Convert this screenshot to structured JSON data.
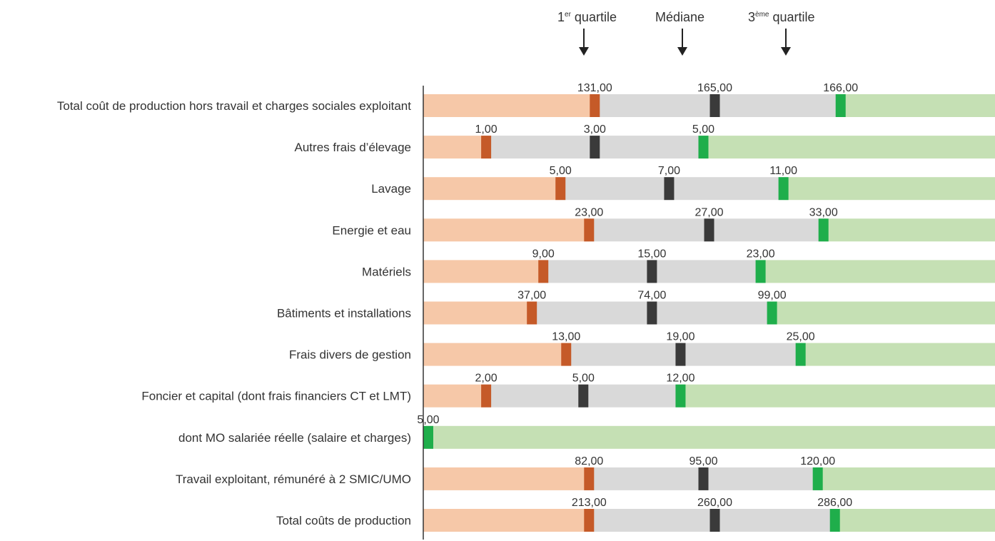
{
  "header": {
    "q1_num": "1",
    "q1_sup": "er",
    "q1_text": " quartile",
    "median": "Médiane",
    "q3_num": "3",
    "q3_sup": "ème",
    "q3_text": " quartile"
  },
  "colors": {
    "low_band": "#f6c8a8",
    "mid_band": "#d9d9d9",
    "high_band": "#c5e0b4",
    "q1_marker": "#c55a28",
    "median_marker": "#3a3a3a",
    "q3_marker": "#1fae4b",
    "axis": "#333333"
  },
  "chart_data": {
    "type": "bar",
    "title": "",
    "categories": [
      "Total coût de production hors travail et charges sociales exploitant",
      "Autres frais d’élevage",
      "Lavage",
      "Energie et eau",
      "Matériels",
      "Bâtiments et installations",
      "Frais divers de gestion",
      "Foncier et capital (dont frais financiers CT et LMT)",
      "dont MO salariée réelle (salaire et charges)",
      "Travail exploitant, rémunéré à 2 SMIC/UMO",
      "Total coûts de production"
    ],
    "series": [
      {
        "name": "1er quartile",
        "values": [
          131,
          1,
          5,
          23,
          9,
          37,
          13,
          2,
          null,
          82,
          213
        ],
        "labels": [
          "131,00",
          "1,00",
          "5,00",
          "23,00",
          "9,00",
          "37,00",
          "13,00",
          "2,00",
          "",
          "82,00",
          "213,00"
        ]
      },
      {
        "name": "Médiane",
        "values": [
          165,
          3,
          7,
          27,
          15,
          74,
          19,
          5,
          null,
          95,
          260
        ],
        "labels": [
          "165,00",
          "3,00",
          "7,00",
          "27,00",
          "15,00",
          "74,00",
          "19,00",
          "5,00",
          "",
          "95,00",
          "260,00"
        ]
      },
      {
        "name": "3ème quartile",
        "values": [
          166,
          5,
          11,
          33,
          23,
          99,
          25,
          12,
          5,
          120,
          286
        ],
        "labels": [
          "166,00",
          "5,00",
          "11,00",
          "33,00",
          "23,00",
          "99,00",
          "25,00",
          "12,00",
          "5,00",
          "120,00",
          "286,00"
        ]
      }
    ],
    "marker_position_fraction": [
      [
        0.3,
        0.51,
        0.73
      ],
      [
        0.11,
        0.3,
        0.49
      ],
      [
        0.24,
        0.43,
        0.63
      ],
      [
        0.29,
        0.5,
        0.7
      ],
      [
        0.21,
        0.4,
        0.59
      ],
      [
        0.19,
        0.4,
        0.61
      ],
      [
        0.25,
        0.45,
        0.66
      ],
      [
        0.11,
        0.28,
        0.45
      ],
      [
        null,
        null,
        0.005
      ],
      [
        0.29,
        0.49,
        0.69
      ],
      [
        0.29,
        0.51,
        0.72
      ]
    ]
  }
}
